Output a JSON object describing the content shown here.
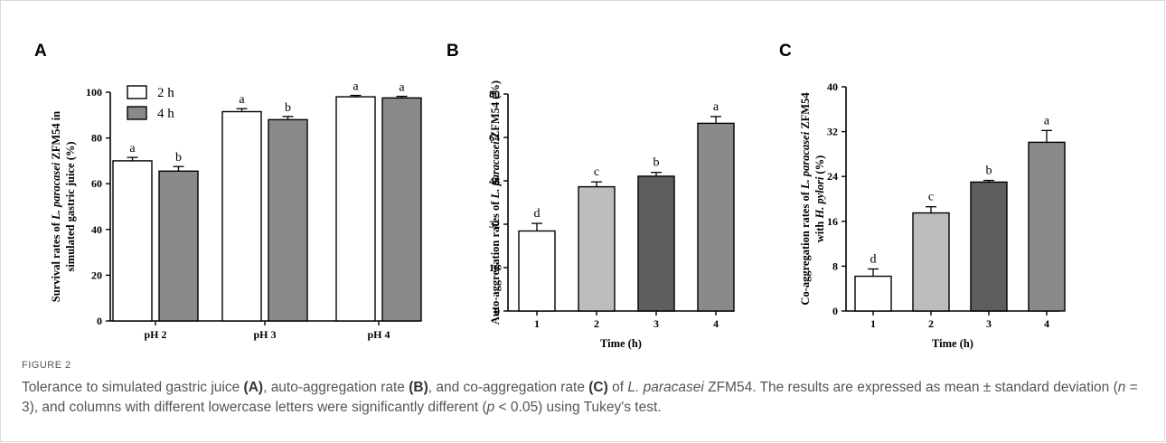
{
  "chart_data": [
    {
      "panel": "A",
      "type": "bar",
      "categories": [
        "pH 2",
        "pH 3",
        "pH 4"
      ],
      "ylabel_parts": [
        "Survival rates of ",
        "L. paracasei",
        " ZFM54 in",
        "simulated gastric juice (%)"
      ],
      "ylim": [
        0,
        100
      ],
      "yticks": [
        "0",
        "20",
        "40",
        "60",
        "80",
        "100"
      ],
      "legend_position": "top-left",
      "series": [
        {
          "name": "2 h",
          "color": "#ffffff",
          "values": [
            70,
            91.5,
            98
          ],
          "errors": [
            1.5,
            1.3,
            0.6
          ],
          "letters": [
            "a",
            "a",
            "a"
          ]
        },
        {
          "name": "4 h",
          "color": "#8a8a8a",
          "values": [
            65.5,
            88,
            97.5
          ],
          "errors": [
            2,
            1.4,
            0.7
          ],
          "letters": [
            "b",
            "b",
            "a"
          ]
        }
      ]
    },
    {
      "panel": "B",
      "type": "bar",
      "categories": [
        "1",
        "2",
        "3",
        "4"
      ],
      "xlabel": "Time (h)",
      "ylabel_parts": [
        "Auto-aggregation rates of ",
        "L. paracasei",
        " ZFM54 (%)"
      ],
      "ylim": [
        0,
        80
      ],
      "yticks": [
        "0",
        "16",
        "32",
        "48",
        "64",
        "80"
      ],
      "values": [
        29.5,
        45.8,
        49.7,
        69.2
      ],
      "errors": [
        2.8,
        1.8,
        1.4,
        2.5
      ],
      "colors": [
        "#ffffff",
        "#bdbdbd",
        "#5e5e5e",
        "#8a8a8a"
      ],
      "letters": [
        "d",
        "c",
        "b",
        "a"
      ]
    },
    {
      "panel": "C",
      "type": "bar",
      "categories": [
        "1",
        "2",
        "3",
        "4"
      ],
      "xlabel": "Time (h)",
      "ylabel_parts": [
        "Co-aggregation rates of ",
        "L. paracasei",
        " ZFM54",
        "with ",
        "H. pylori",
        " (%)"
      ],
      "ylim": [
        0,
        40
      ],
      "yticks": [
        "0",
        "8",
        "16",
        "24",
        "32",
        "40"
      ],
      "values": [
        6.2,
        17.5,
        23.0,
        30.1
      ],
      "errors": [
        1.3,
        1.1,
        0.3,
        2.1
      ],
      "colors": [
        "#ffffff",
        "#bdbdbd",
        "#5e5e5e",
        "#8a8a8a"
      ],
      "letters": [
        "d",
        "c",
        "b",
        "a"
      ]
    }
  ],
  "caption": {
    "figure_label": "FIGURE 2",
    "text_parts": [
      {
        "t": "Tolerance to simulated gastric juice ",
        "s": "n"
      },
      {
        "t": "(A)",
        "s": "b"
      },
      {
        "t": ", auto-aggregation rate ",
        "s": "n"
      },
      {
        "t": "(B)",
        "s": "b"
      },
      {
        "t": ", and co-aggregation rate ",
        "s": "n"
      },
      {
        "t": "(C)",
        "s": "b"
      },
      {
        "t": " of ",
        "s": "n"
      },
      {
        "t": "L. paracasei",
        "s": "i"
      },
      {
        "t": " ZFM54. The results are expressed as mean ± standard deviation (",
        "s": "n"
      },
      {
        "t": "n",
        "s": "i"
      },
      {
        "t": " = 3), and columns with different lowercase letters were significantly different (",
        "s": "n"
      },
      {
        "t": "p",
        "s": "i"
      },
      {
        "t": " < 0.05) using Tukey's test.",
        "s": "n"
      }
    ]
  }
}
